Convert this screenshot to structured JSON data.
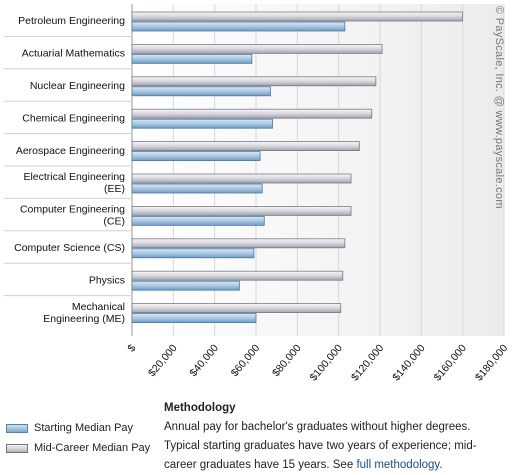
{
  "chart_data": {
    "type": "bar",
    "orientation": "horizontal",
    "categories": [
      [
        "Petroleum Engineering"
      ],
      [
        "Actuarial Mathematics"
      ],
      [
        "Nuclear Engineering"
      ],
      [
        "Chemical Engineering"
      ],
      [
        "Aerospace Engineering"
      ],
      [
        "Electrical Engineering",
        "(EE)"
      ],
      [
        "Computer Engineering",
        "(CE)"
      ],
      [
        "Computer Science (CS)"
      ],
      [
        "Physics"
      ],
      [
        "Mechanical",
        "Engineering (ME)"
      ]
    ],
    "series": [
      {
        "name": "Mid-Career Median Pay",
        "color": "#c4c4cc",
        "values": [
          160000,
          121000,
          118000,
          116000,
          110000,
          106000,
          106000,
          103000,
          102000,
          101000
        ]
      },
      {
        "name": "Starting Median Pay",
        "color": "#8fb6d8",
        "values": [
          103000,
          58000,
          67000,
          68000,
          62000,
          63000,
          64000,
          59000,
          52000,
          60000
        ]
      }
    ],
    "xlim": [
      0,
      180000
    ],
    "xticks": [
      {
        "value": 0,
        "label": "$"
      },
      {
        "value": 20000,
        "label": "$20,000"
      },
      {
        "value": 40000,
        "label": "$40,000"
      },
      {
        "value": 60000,
        "label": "$60,000"
      },
      {
        "value": 80000,
        "label": "$80,000"
      },
      {
        "value": 100000,
        "label": "$100,000"
      },
      {
        "value": 120000,
        "label": "$120,000"
      },
      {
        "value": 140000,
        "label": "$140,000"
      },
      {
        "value": 160000,
        "label": "$160,000"
      },
      {
        "value": 180000,
        "label": "$180,000"
      }
    ],
    "grid": true,
    "watermark": "© PayScale, Inc. @ www.payscale.com"
  },
  "legend": {
    "start_label": "Starting Median Pay",
    "mid_label": "Mid-Career Median Pay"
  },
  "methodology": {
    "title": "Methodology",
    "line1": "Annual pay for bachelor's graduates without higher degrees.",
    "line2a": "Typical starting graduates have two years of experience; mid-",
    "line2b": "career graduates have 15 years. See ",
    "link": "full methodology",
    "end": "."
  }
}
